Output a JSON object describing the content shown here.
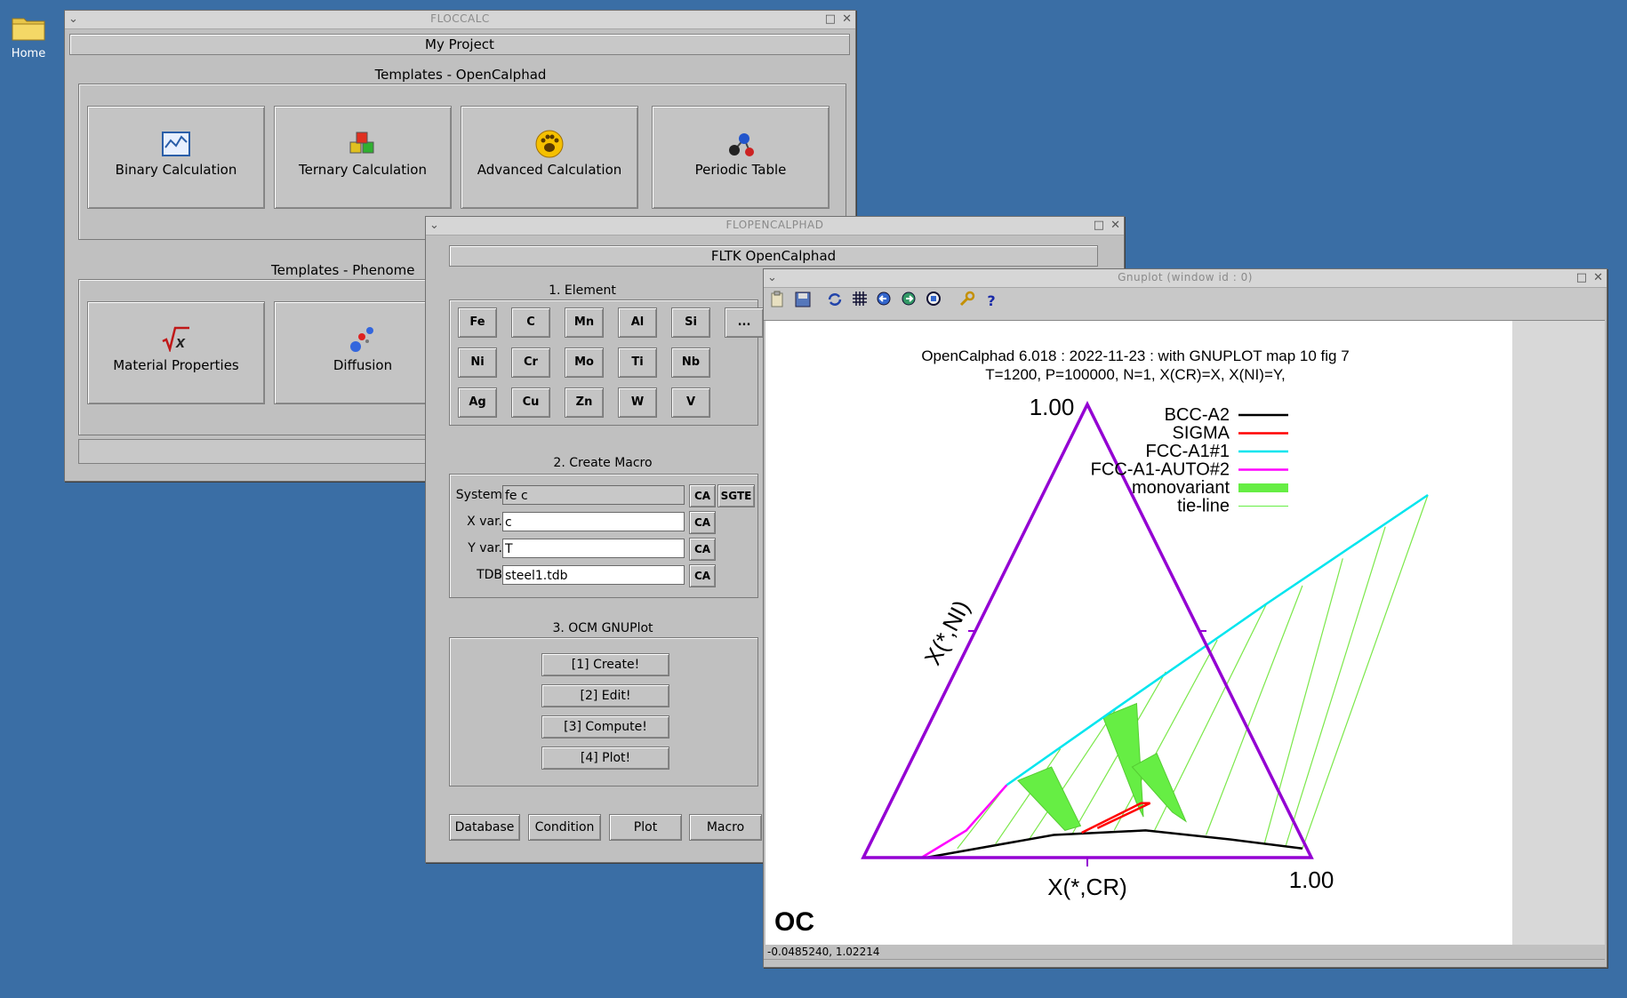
{
  "desktop": {
    "home_label": "Home"
  },
  "floccalc": {
    "title": "FLOCCALC",
    "project_title": "My Project",
    "group1_label": "Templates - OpenCalphad",
    "group2_label": "Templates - Phenome",
    "buttons": [
      {
        "label": "Binary Calculation",
        "icon": "chart-icon"
      },
      {
        "label": "Ternary Calculation",
        "icon": "cubes-icon"
      },
      {
        "label": "Advanced Calculation",
        "icon": "paw-icon"
      },
      {
        "label": "Periodic Table",
        "icon": "molecule-icon"
      },
      {
        "label": "Material Properties",
        "icon": "sqrt-x-icon"
      },
      {
        "label": "Diffusion",
        "icon": "atoms-icon"
      }
    ]
  },
  "flopencalphad": {
    "title": "FLOPENCALPHAD",
    "app_title": "FLTK OpenCalphad",
    "element_section": "1. Element",
    "elements": [
      [
        "Fe",
        "C",
        "Mn",
        "Al",
        "Si",
        "..."
      ],
      [
        "Ni",
        "Cr",
        "Mo",
        "Ti",
        "Nb"
      ],
      [
        "Ag",
        "Cu",
        "Zn",
        "W",
        "V"
      ]
    ],
    "macro_section": "2. Create Macro",
    "fields": [
      {
        "label": "System",
        "value": "fe c"
      },
      {
        "label": "X var.",
        "value": "c"
      },
      {
        "label": "Y var.",
        "value": "T"
      },
      {
        "label": "TDB",
        "value": "steel1.tdb"
      }
    ],
    "ca_label": "CA",
    "sgte_label": "SGTE",
    "gnuplot_section": "3. OCM GNUPlot",
    "steps": [
      "[1] Create!",
      "[2] Edit!",
      "[3] Compute!",
      "[4] Plot!"
    ],
    "bottom_buttons": [
      "Database",
      "Condition",
      "Plot",
      "Macro"
    ]
  },
  "gnuplot": {
    "title": "Gnuplot (window id : 0)",
    "status": "-0.0485240,  1.02214",
    "logo": "OC"
  },
  "chart_data": {
    "type": "ternary",
    "title": "OpenCalphad   6.018 :  2022-11-23 : with GNUPLOT map 10 fig 7",
    "subtitle": "T=1200, P=100000, N=1, X(CR)=X,  X(NI)=Y,",
    "xlabel": "X(*,CR)",
    "ylabel": "X(*,NI)",
    "apex_label": "1.00",
    "corner_label": "1.00",
    "legend": [
      {
        "name": "BCC-A2",
        "color": "#000000",
        "style": "line"
      },
      {
        "name": "SIGMA",
        "color": "#ff0000",
        "style": "line"
      },
      {
        "name": "FCC-A1#1",
        "color": "#00e5ee",
        "style": "line"
      },
      {
        "name": "FCC-A1-AUTO#2",
        "color": "#ff00ff",
        "style": "line"
      },
      {
        "name": "monovariant",
        "color": "#66ee44",
        "style": "band"
      },
      {
        "name": "tie-line",
        "color": "#66ee44",
        "style": "thin"
      }
    ],
    "frame_color": "#9400d3",
    "series": [
      {
        "name": "BCC-A2",
        "points": [
          [
            0.14,
            0.0
          ],
          [
            0.4,
            0.05
          ],
          [
            0.6,
            0.06
          ],
          [
            0.8,
            0.04
          ],
          [
            0.97,
            0.02
          ]
        ]
      },
      {
        "name": "SIGMA",
        "points": [
          [
            0.46,
            0.055
          ],
          [
            0.56,
            0.12
          ],
          [
            0.58,
            0.12
          ],
          [
            0.49,
            0.065
          ]
        ]
      },
      {
        "name": "FCC-A1#1",
        "points": [
          [
            0.24,
            0.16
          ],
          [
            0.4,
            0.33
          ],
          [
            0.62,
            0.56
          ],
          [
            0.86,
            0.8
          ]
        ]
      },
      {
        "name": "FCC-A1-AUTO#2",
        "points": [
          [
            0.13,
            0.0
          ],
          [
            0.2,
            0.06
          ],
          [
            0.24,
            0.16
          ]
        ]
      }
    ]
  }
}
